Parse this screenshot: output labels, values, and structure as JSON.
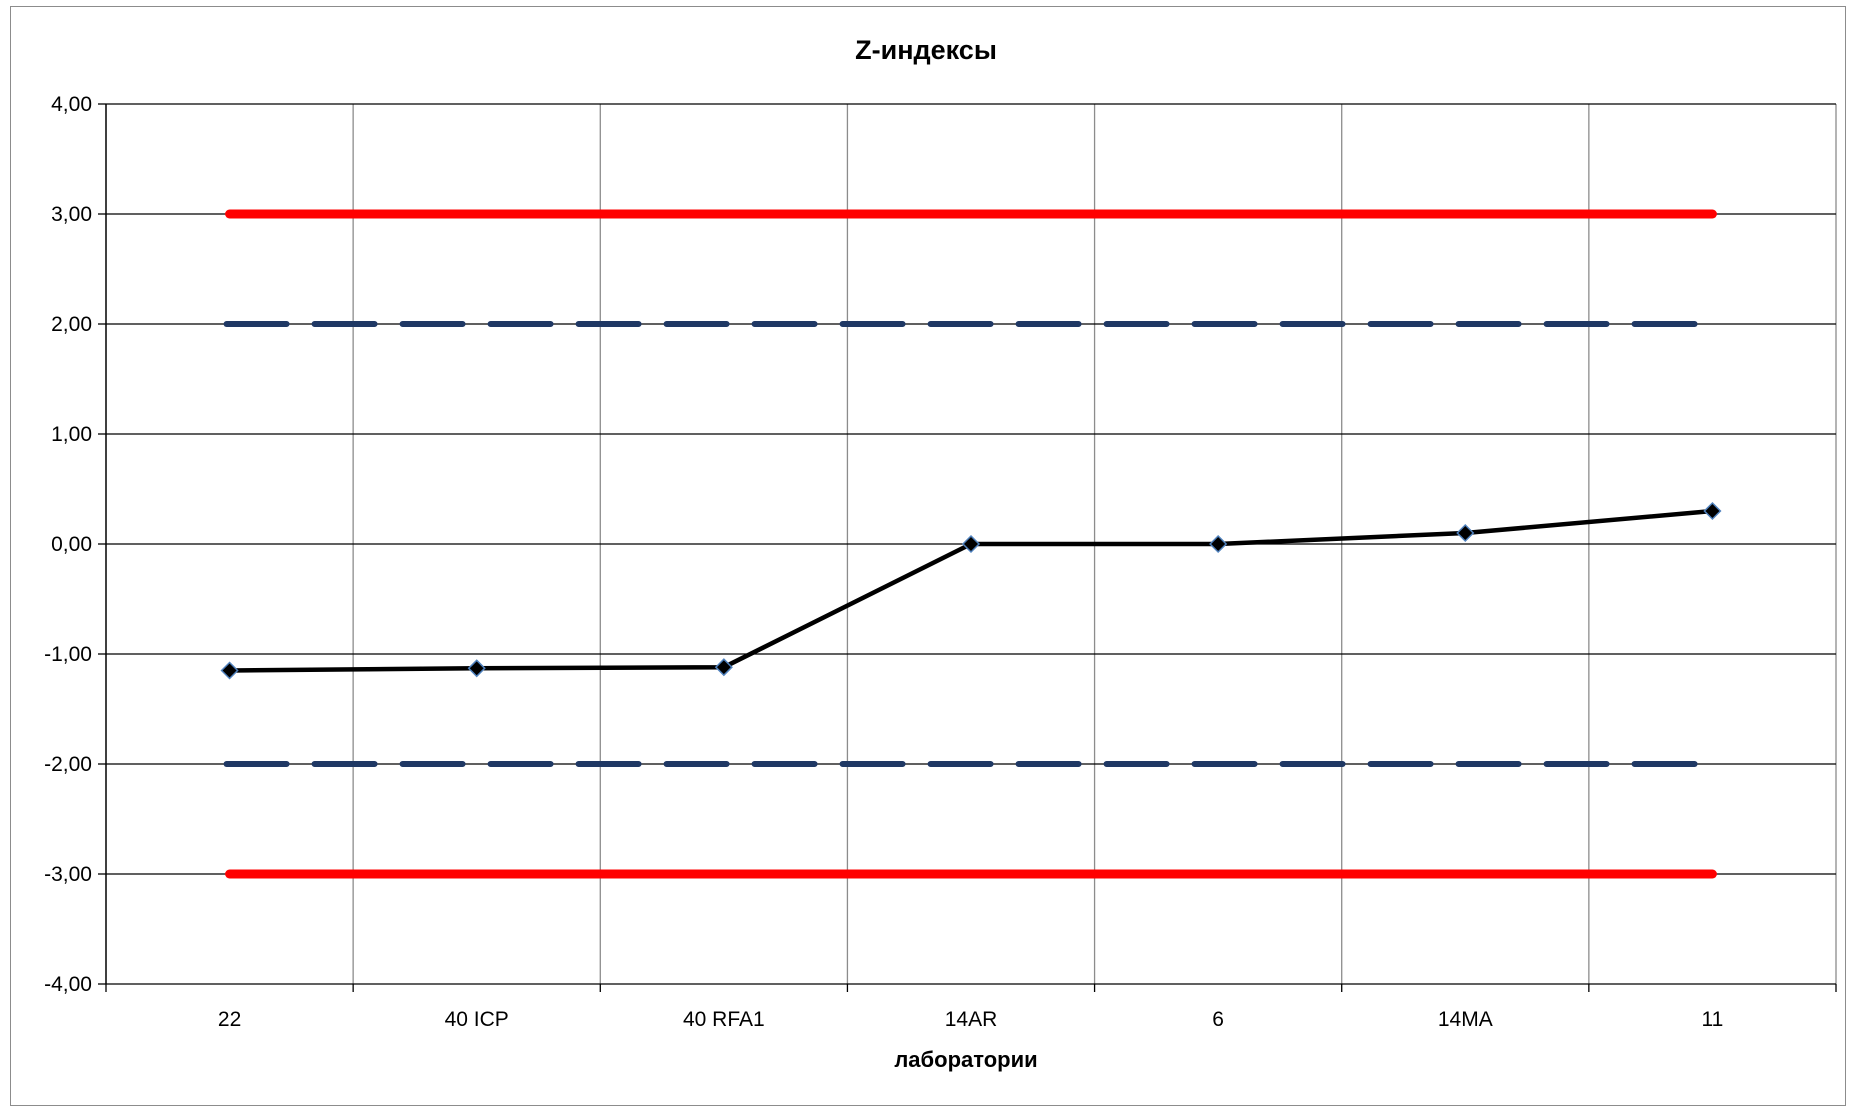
{
  "chart_data": {
    "type": "line",
    "title": "Z-индексы",
    "xlabel": "лаборатории",
    "ylabel": "",
    "categories": [
      "22",
      "40 ICP",
      "40 RFA1",
      "14AR",
      "6",
      "14MA",
      "11"
    ],
    "ylim": [
      -4,
      4
    ],
    "yticks": [
      4,
      3,
      2,
      1,
      0,
      -1,
      -2,
      -3,
      -4
    ],
    "ytick_labels": [
      "4,00",
      "3,00",
      "2,00",
      "1,00",
      "0,00",
      "-1,00",
      "-2,00",
      "-3,00",
      "-4,00"
    ],
    "grid": true,
    "legend": "none",
    "series": [
      {
        "values": [
          -1.15,
          -1.13,
          -1.12,
          0.0,
          0.0,
          0.1,
          0.3
        ],
        "color": "#000000",
        "marker": "diamond",
        "marker_fill": "#000000",
        "marker_edge": "#4f81bd",
        "style": "solid"
      }
    ],
    "reference_lines": [
      {
        "y": 3,
        "color": "#ff0000",
        "style": "solid-thick"
      },
      {
        "y": -3,
        "color": "#ff0000",
        "style": "solid-thick"
      },
      {
        "y": 2,
        "color": "#1f3864",
        "style": "dashed-thick"
      },
      {
        "y": -2,
        "color": "#1f3864",
        "style": "dashed-thick"
      }
    ]
  }
}
